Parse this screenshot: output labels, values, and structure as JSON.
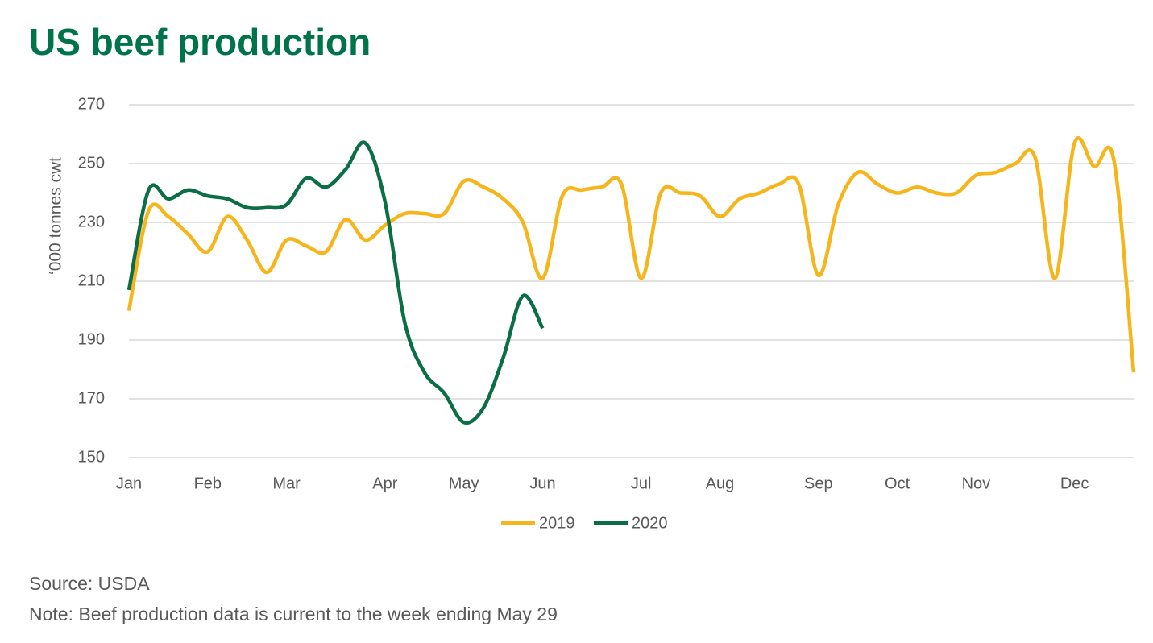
{
  "chart_data": {
    "type": "line",
    "title": "US beef production",
    "y_label": "‘000 tonnes cwt",
    "categories": [
      "Jan",
      null,
      null,
      null,
      "Feb",
      null,
      null,
      null,
      "Mar",
      null,
      null,
      null,
      null,
      "Apr",
      null,
      null,
      null,
      "May",
      null,
      null,
      null,
      "Jun",
      null,
      null,
      null,
      null,
      "Jul",
      null,
      null,
      null,
      "Aug",
      null,
      null,
      null,
      null,
      "Sep",
      null,
      null,
      null,
      "Oct",
      null,
      null,
      null,
      "Nov",
      null,
      null,
      null,
      null,
      "Dec",
      null,
      null,
      null
    ],
    "series": [
      {
        "name": "2019",
        "color": "#f5b51b",
        "values": [
          200,
          234,
          232,
          226,
          220,
          232,
          224,
          213,
          224,
          222,
          220,
          231,
          224,
          229,
          233,
          233,
          233,
          244,
          242,
          238,
          230,
          211,
          239,
          241,
          242,
          243,
          211,
          240,
          240,
          239,
          232,
          238,
          240,
          243,
          243,
          212,
          236,
          247,
          243,
          240,
          242,
          240,
          240,
          246,
          247,
          250,
          252,
          211,
          257,
          249,
          251,
          179
        ]
      },
      {
        "name": "2020",
        "color": "#0b6e46",
        "values": [
          207,
          241,
          238,
          241,
          239,
          238,
          235,
          235,
          236,
          245,
          242,
          248,
          257,
          237,
          196,
          179,
          172,
          162,
          167,
          184,
          205,
          194,
          null,
          null,
          null,
          null,
          null,
          null,
          null,
          null,
          null,
          null,
          null,
          null,
          null,
          null,
          null,
          null,
          null,
          null,
          null,
          null,
          null,
          null,
          null,
          null,
          null,
          null,
          null,
          null,
          null,
          null
        ]
      }
    ],
    "ylim": [
      150,
      270
    ],
    "yticks": [
      150,
      170,
      190,
      210,
      230,
      250,
      270
    ],
    "grid": true,
    "legend": "bottom",
    "source": "Source: USDA",
    "note": "Note: Beef production data is current to the week ending May 29"
  }
}
